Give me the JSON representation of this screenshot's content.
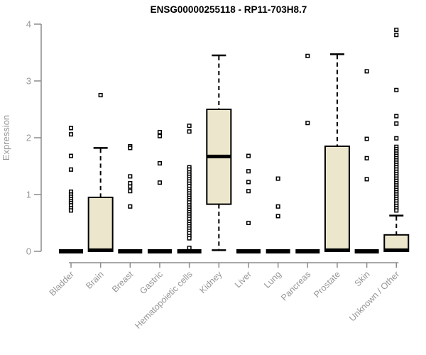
{
  "page": {
    "background": "#ffffff"
  },
  "chart_data": {
    "type": "boxplot",
    "title": "ENSG00000255118 - RP11-703H8.7",
    "ylabel": "Expression",
    "xlabel": "",
    "ylim": [
      0,
      4
    ],
    "yticks": [
      "0",
      "1",
      "2",
      "3",
      "4"
    ],
    "grid": false,
    "legend": "none",
    "colors": {
      "box_fill": "#ece7cc",
      "box_border": "#000000",
      "median": "#000000",
      "whisker": "#000000",
      "outlier_stroke": "#000000",
      "outlier_fill": "#ffffff",
      "axis_line": "#8c8c8c",
      "tick_text": "#969696",
      "title_text": "#000000"
    },
    "categories": [
      "Bladder",
      "Brain",
      "Breast",
      "Gastric",
      "Hematopoietic cells",
      "Kidney",
      "Liver",
      "Lung",
      "Pancreas",
      "Prostate",
      "Skin",
      "Unknown / Other"
    ],
    "boxes": [
      {
        "category": "Bladder",
        "q1": 0,
        "median": 0,
        "q3": 0,
        "whisker_low": 0,
        "whisker_high": 0,
        "outliers": [
          2.17,
          2.06,
          1.68,
          1.44,
          1.05,
          1.0,
          0.96,
          0.92,
          0.88,
          0.85,
          0.81,
          0.76,
          0.72
        ]
      },
      {
        "category": "Brain",
        "q1": 0,
        "median": 0.02,
        "q3": 0.95,
        "whisker_low": 0,
        "whisker_high": 1.82,
        "outliers": [
          2.75
        ]
      },
      {
        "category": "Breast",
        "q1": 0,
        "median": 0,
        "q3": 0,
        "whisker_low": 0,
        "whisker_high": 0,
        "outliers": [
          1.85,
          1.82,
          1.32,
          1.2,
          1.14,
          1.06,
          0.79
        ]
      },
      {
        "category": "Gastric",
        "q1": 0,
        "median": 0,
        "q3": 0,
        "whisker_low": 0,
        "whisker_high": 0,
        "outliers": [
          2.1,
          2.03,
          1.55,
          1.21
        ]
      },
      {
        "category": "Hematopoietic cells",
        "q1": 0,
        "median": 0,
        "q3": 0,
        "whisker_low": 0,
        "whisker_high": 0,
        "outliers": [
          2.21,
          2.11,
          1.48,
          1.44,
          1.39,
          1.35,
          1.31,
          1.27,
          1.23,
          1.19,
          1.15,
          1.1,
          1.06,
          1.02,
          0.98,
          0.94,
          0.9,
          0.86,
          0.81,
          0.77,
          0.73,
          0.69,
          0.65,
          0.61,
          0.57,
          0.52,
          0.48,
          0.44,
          0.4,
          0.36,
          0.32,
          0.27,
          0.23,
          0.06
        ]
      },
      {
        "category": "Kidney",
        "q1": 0.83,
        "median": 1.67,
        "q3": 2.5,
        "whisker_low": 0.02,
        "whisker_high": 3.45,
        "outliers": []
      },
      {
        "category": "Liver",
        "q1": 0,
        "median": 0,
        "q3": 0,
        "whisker_low": 0,
        "whisker_high": 0,
        "outliers": [
          1.68,
          1.41,
          1.22,
          1.06,
          0.5
        ]
      },
      {
        "category": "Lung",
        "q1": 0,
        "median": 0,
        "q3": 0,
        "whisker_low": 0,
        "whisker_high": 0,
        "outliers": [
          1.28,
          0.79,
          0.62
        ]
      },
      {
        "category": "Pancreas",
        "q1": 0,
        "median": 0,
        "q3": 0,
        "whisker_low": 0,
        "whisker_high": 0,
        "outliers": [
          3.44,
          2.26
        ]
      },
      {
        "category": "Prostate",
        "q1": 0,
        "median": 0.02,
        "q3": 1.85,
        "whisker_low": 0,
        "whisker_high": 3.47,
        "outliers": []
      },
      {
        "category": "Skin",
        "q1": 0,
        "median": 0,
        "q3": 0,
        "whisker_low": 0,
        "whisker_high": 0,
        "outliers": [
          3.17,
          1.98,
          1.64,
          1.27
        ]
      },
      {
        "category": "Unknown / Other",
        "q1": 0,
        "median": 0.02,
        "q3": 0.29,
        "whisker_low": 0,
        "whisker_high": 0.63,
        "outliers": [
          3.9,
          3.81,
          2.84,
          2.38,
          2.25,
          1.99,
          1.84,
          1.8,
          1.76,
          1.72,
          1.68,
          1.64,
          1.6,
          1.56,
          1.52,
          1.48,
          1.44,
          1.4,
          1.36,
          1.32,
          1.28,
          1.24,
          1.2,
          1.16,
          1.12,
          1.08,
          1.04,
          1.0,
          0.96,
          0.92,
          0.88,
          0.84,
          0.8,
          0.76,
          0.72
        ]
      }
    ]
  }
}
